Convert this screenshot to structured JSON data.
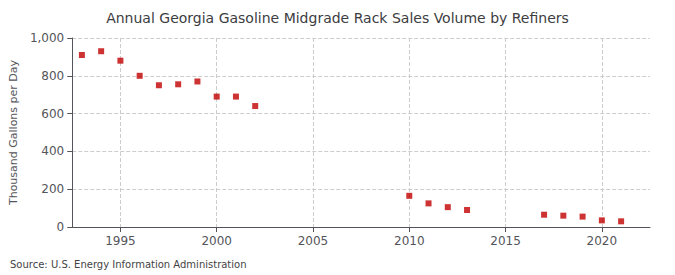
{
  "chart_data": {
    "type": "scatter",
    "title": "Annual Georgia Gasoline Midgrade Rack Sales Volume by Refiners",
    "ylabel": "Thousand Gallons per Day",
    "annotation": "Source: U.S. Energy Information Administration",
    "x": [
      1993,
      1994,
      1995,
      1996,
      1997,
      1998,
      1999,
      2000,
      2001,
      2002,
      2010,
      2011,
      2012,
      2013,
      2017,
      2018,
      2019,
      2020,
      2021
    ],
    "values": [
      910,
      930,
      880,
      800,
      750,
      755,
      770,
      690,
      690,
      640,
      165,
      125,
      105,
      90,
      65,
      60,
      55,
      35,
      30
    ],
    "color": "#c00000",
    "marker": "square",
    "xlim": [
      1992.5,
      2022.5
    ],
    "xticks": [
      1995,
      2000,
      2005,
      2010,
      2015,
      2020
    ],
    "ylim": [
      0,
      1000
    ],
    "yticks": [
      0,
      200,
      400,
      600,
      800,
      {
        "value": 1000,
        "label": "1,000"
      }
    ],
    "grid": true
  }
}
